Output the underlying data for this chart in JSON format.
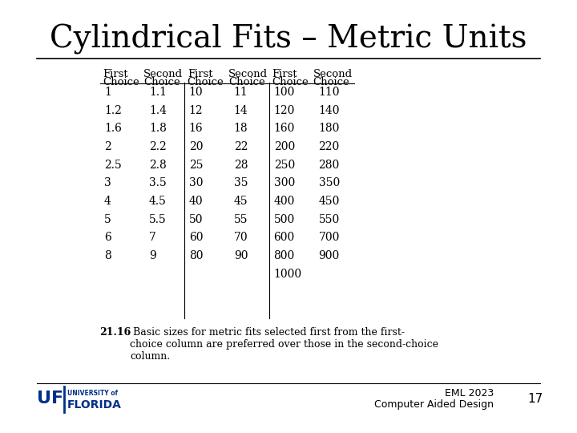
{
  "title": "Cylindrical Fits – Metric Units",
  "title_fontsize": 28,
  "title_color": "#000000",
  "background_color": "#ffffff",
  "col1_first": [
    "1",
    "1.2",
    "1.6",
    "2",
    "2.5",
    "3",
    "4",
    "5",
    "6",
    "8"
  ],
  "col1_second": [
    "1.1",
    "1.4",
    "1.8",
    "2.2",
    "2.8",
    "3.5",
    "4.5",
    "5.5",
    "7",
    "9"
  ],
  "col2_first": [
    "10",
    "12",
    "16",
    "20",
    "25",
    "30",
    "40",
    "50",
    "60",
    "80"
  ],
  "col2_second": [
    "11",
    "14",
    "18",
    "22",
    "28",
    "35",
    "45",
    "55",
    "70",
    "90"
  ],
  "col3_first": [
    "100",
    "120",
    "160",
    "200",
    "250",
    "300",
    "400",
    "500",
    "600",
    "800",
    "1000"
  ],
  "col3_second": [
    "110",
    "140",
    "180",
    "220",
    "280",
    "350",
    "450",
    "550",
    "700",
    "900",
    ""
  ],
  "header_line1": [
    "First",
    "Second",
    "First",
    "Second",
    "First",
    "Second"
  ],
  "header_line2": [
    "Choice",
    "Choice",
    "Choice",
    "Choice",
    "Choice",
    "Choice"
  ],
  "caption_bold": "21.16",
  "caption_text": " Basic sizes for metric fits selected first from the first-\nchoice column are preferred over those in the second-choice\ncolumn.",
  "footer_right1": "EML 2023",
  "footer_right2": "Computer Aided Design",
  "page_number": "17",
  "table_data_fontsize": 10,
  "header_fontsize": 9.5,
  "caption_fontsize": 9
}
